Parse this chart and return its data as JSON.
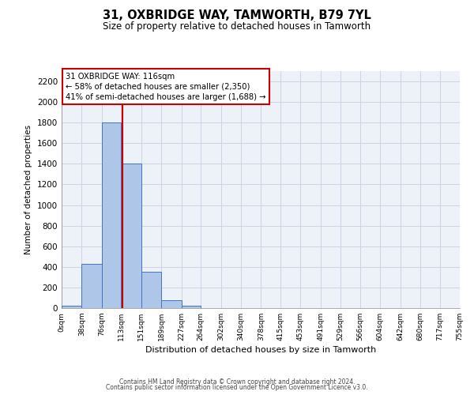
{
  "title": "31, OXBRIDGE WAY, TAMWORTH, B79 7YL",
  "subtitle": "Size of property relative to detached houses in Tamworth",
  "xlabel": "Distribution of detached houses by size in Tamworth",
  "ylabel": "Number of detached properties",
  "bar_edges": [
    0,
    38,
    76,
    113,
    151,
    189,
    227,
    264,
    302,
    340,
    378,
    415,
    453,
    491,
    529,
    566,
    604,
    642,
    680,
    717,
    755
  ],
  "bar_heights": [
    20,
    430,
    1800,
    1400,
    350,
    75,
    25,
    0,
    0,
    0,
    0,
    0,
    0,
    0,
    0,
    0,
    0,
    0,
    0,
    0
  ],
  "bar_color": "#aec6e8",
  "bar_edge_color": "#4472c4",
  "property_line_x": 116,
  "property_line_color": "#cc0000",
  "ylim": [
    0,
    2300
  ],
  "yticks": [
    0,
    200,
    400,
    600,
    800,
    1000,
    1200,
    1400,
    1600,
    1800,
    2000,
    2200
  ],
  "xtick_labels": [
    "0sqm",
    "38sqm",
    "76sqm",
    "113sqm",
    "151sqm",
    "189sqm",
    "227sqm",
    "264sqm",
    "302sqm",
    "340sqm",
    "378sqm",
    "415sqm",
    "453sqm",
    "491sqm",
    "529sqm",
    "566sqm",
    "604sqm",
    "642sqm",
    "680sqm",
    "717sqm",
    "755sqm"
  ],
  "annotation_line1": "31 OXBRIDGE WAY: 116sqm",
  "annotation_line2": "← 58% of detached houses are smaller (2,350)",
  "annotation_line3": "41% of semi-detached houses are larger (1,688) →",
  "footer_line1": "Contains HM Land Registry data © Crown copyright and database right 2024.",
  "footer_line2": "Contains public sector information licensed under the Open Government Licence v3.0.",
  "grid_color": "#cdd5e5",
  "background_color": "#edf1f8"
}
